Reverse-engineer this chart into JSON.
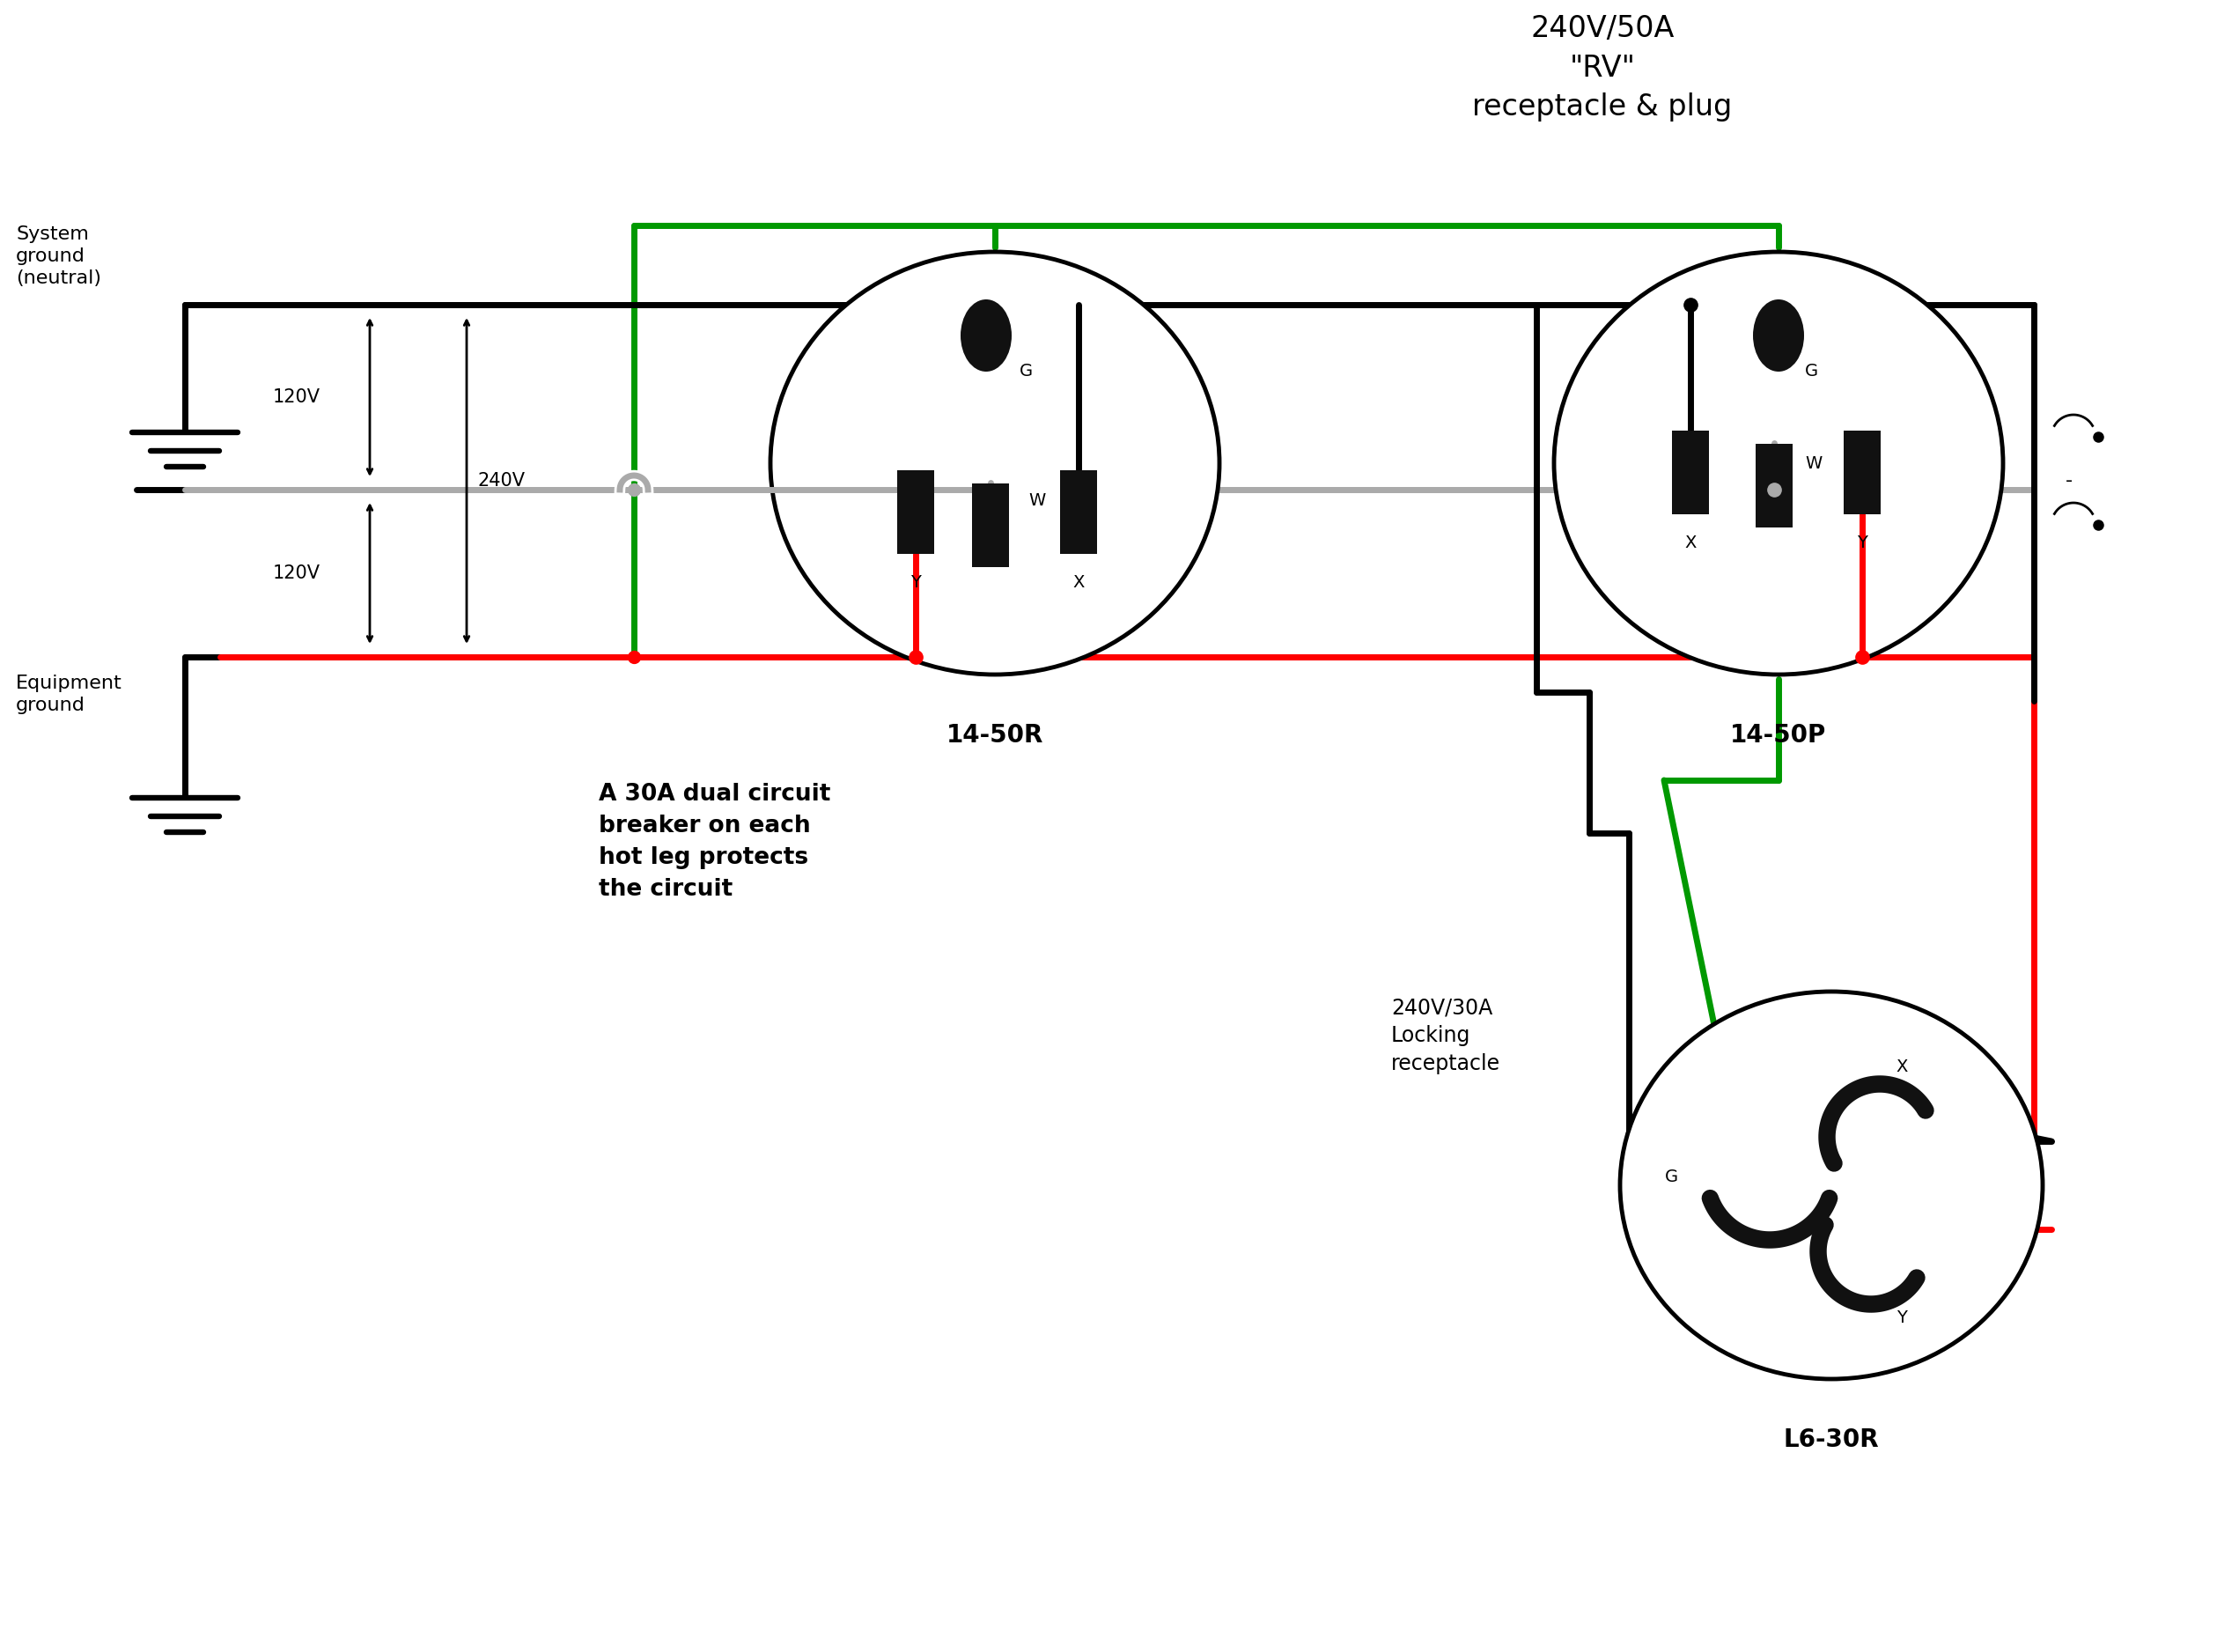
{
  "bg_color": "#ffffff",
  "colors": {
    "black": "#000000",
    "red": "#ff0000",
    "green": "#009900",
    "gray": "#aaaaaa",
    "dark": "#111111"
  },
  "title": "240V/50A\n\"RV\"\nreceptacle & plug",
  "labels": {
    "system_ground": "System\nground\n(neutral)",
    "equipment_ground": "Equipment\nground",
    "v120_top": "120V",
    "v120_bot": "120V",
    "v240": "240V",
    "o1": "14-50R",
    "o2": "14-50P",
    "o3": "L6-30R",
    "breaker": "A 30A dual circuit\nbreaker on each\nhot leg protects\nthe circuit",
    "locking": "240V/30A\nLocking\nreceptacle"
  }
}
